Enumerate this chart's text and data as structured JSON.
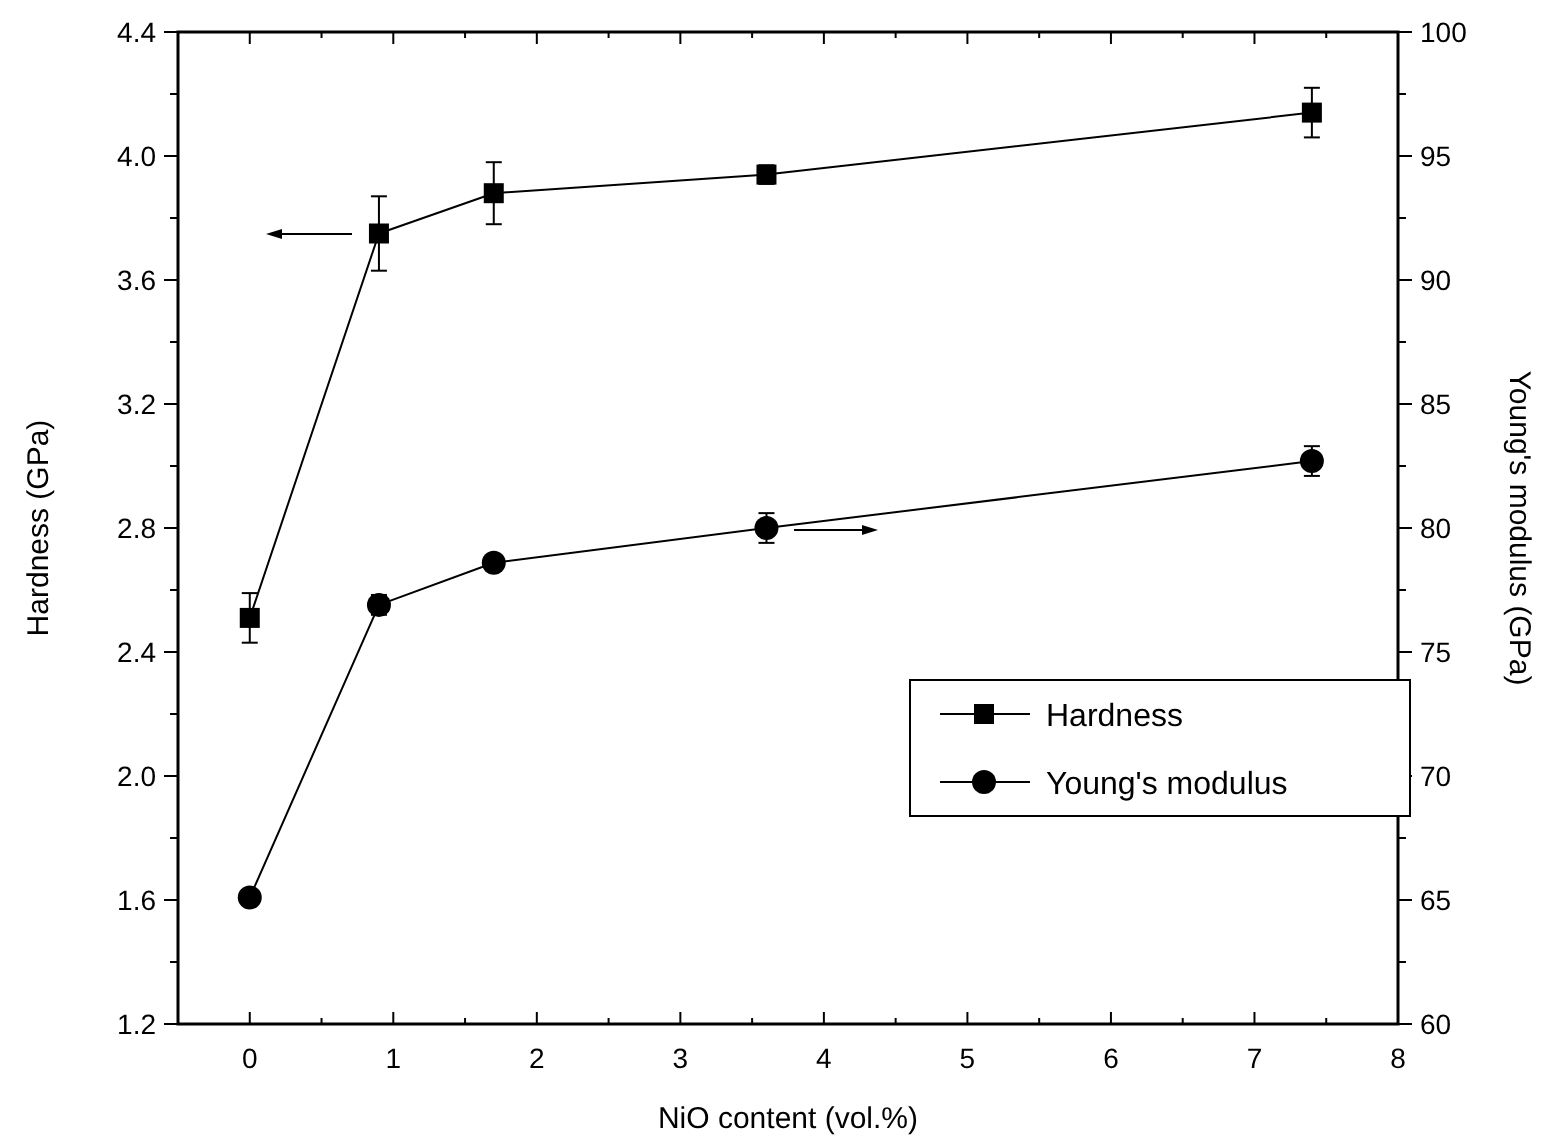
{
  "chart_data": {
    "type": "line",
    "xlabel": "NiO content (vol.%)",
    "ylabel": "Hardness (GPa)",
    "y2label": "Young's modulus (GPa)",
    "x": [
      0,
      0.9,
      1.7,
      3.6,
      7.4
    ],
    "xlim": [
      -0.5,
      8
    ],
    "xticks": [
      0,
      {
        "value": 0.5,
        "label": null
      },
      1,
      {
        "value": 1.5,
        "label": null
      },
      2,
      {
        "value": 2.5,
        "label": null
      },
      3,
      {
        "value": 3.5,
        "label": null
      },
      4,
      {
        "value": 4.5,
        "label": null
      },
      5,
      {
        "value": 5.5,
        "label": null
      },
      6,
      {
        "value": 6.5,
        "label": null
      },
      7,
      {
        "value": 7.5,
        "label": null
      },
      8
    ],
    "ylim": [
      1.2,
      4.4
    ],
    "yticks": [
      {
        "value": 1.2,
        "label": "1.2"
      },
      {
        "value": 1.4,
        "label": null
      },
      {
        "value": 1.6,
        "label": "1.6"
      },
      {
        "value": 1.8,
        "label": null
      },
      {
        "value": 2.0,
        "label": "2.0"
      },
      {
        "value": 2.2,
        "label": null
      },
      {
        "value": 2.4,
        "label": "2.4"
      },
      {
        "value": 2.6,
        "label": null
      },
      {
        "value": 2.8,
        "label": "2.8"
      },
      {
        "value": 3.0,
        "label": null
      },
      {
        "value": 3.2,
        "label": "3.2"
      },
      {
        "value": 3.4,
        "label": null
      },
      {
        "value": 3.6,
        "label": "3.6"
      },
      {
        "value": 3.8,
        "label": null
      },
      {
        "value": 4.0,
        "label": "4.0"
      },
      {
        "value": 4.2,
        "label": null
      },
      {
        "value": 4.4,
        "label": "4.4"
      }
    ],
    "y2lim": [
      60,
      100
    ],
    "y2ticks": [
      60,
      {
        "value": 62.5,
        "label": null
      },
      65,
      {
        "value": 67.5,
        "label": null
      },
      70,
      {
        "value": 72.5,
        "label": null
      },
      75,
      {
        "value": 77.5,
        "label": null
      },
      80,
      {
        "value": 82.5,
        "label": null
      },
      85,
      {
        "value": 87.5,
        "label": null
      },
      90,
      {
        "value": 92.5,
        "label": null
      },
      95,
      {
        "value": 97.5,
        "label": null
      },
      100
    ],
    "series": [
      {
        "name": "Hardness",
        "color": "#000000",
        "marker": "square",
        "values": [
          2.51,
          3.75,
          3.88,
          3.94,
          4.14
        ],
        "errors": [
          0.08,
          0.12,
          0.1,
          0.03,
          0.08
        ]
      },
      {
        "name": "Young's modulus",
        "color": "#000000",
        "marker": "circle",
        "axis": "y2",
        "values": [
          65.1,
          76.9,
          78.6,
          80.0,
          82.7
        ],
        "errors": [
          0.3,
          0.4,
          0.3,
          0.6,
          0.6
        ]
      }
    ],
    "legend": "bottom right",
    "grid": false,
    "line_style": "solid"
  }
}
